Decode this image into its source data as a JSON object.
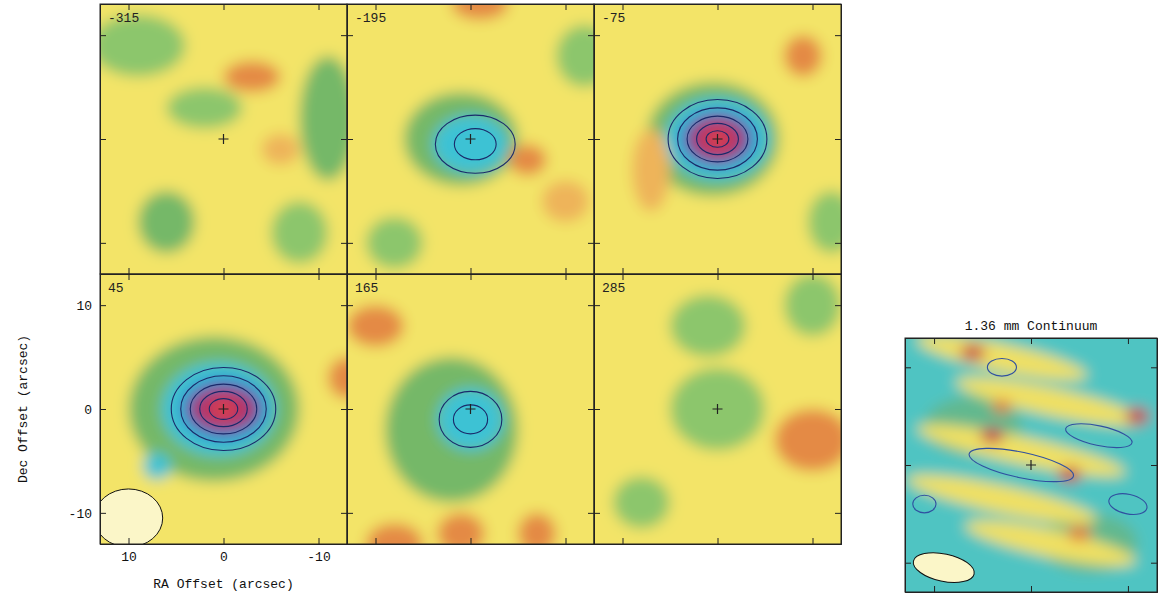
{
  "chart_data": [
    {
      "type": "contour_map",
      "velocity": -315,
      "xlim": [
        13,
        -13
      ],
      "ylim": [
        -13,
        13
      ],
      "xticks": [
        10,
        0,
        -10
      ],
      "yticks": [
        -10,
        0,
        10
      ],
      "tick_labels": false,
      "color": "#f3e468",
      "cross": [
        0,
        0
      ],
      "blobs": [
        {
          "x": 9,
          "y": 9,
          "rx": 5,
          "ry": 3,
          "color": "#8cc66c"
        },
        {
          "x": -11,
          "y": 2,
          "rx": 3,
          "ry": 6,
          "color": "#74b868"
        },
        {
          "x": 2,
          "y": 3,
          "rx": 4,
          "ry": 2,
          "color": "#8cc66c"
        },
        {
          "x": -3,
          "y": 6,
          "rx": 3,
          "ry": 1.5,
          "color": "#e48a44"
        },
        {
          "x": 6,
          "y": -8,
          "rx": 3,
          "ry": 3,
          "color": "#74b868"
        },
        {
          "x": -8,
          "y": -9,
          "rx": 3,
          "ry": 3,
          "color": "#8cc66c"
        },
        {
          "x": -6,
          "y": -1,
          "rx": 2,
          "ry": 1.5,
          "color": "#eeb45a"
        }
      ],
      "contours": []
    },
    {
      "type": "contour_map",
      "velocity": -195,
      "xlim": [
        13,
        -13
      ],
      "ylim": [
        -13,
        13
      ],
      "xticks": [
        10,
        0,
        -10
      ],
      "yticks": [
        -10,
        0,
        10
      ],
      "tick_labels": false,
      "color": "#f3e468",
      "cross": [
        0,
        0
      ],
      "blobs": [
        {
          "x": 1,
          "y": 0,
          "rx": 6,
          "ry": 4.5,
          "color": "#74b868"
        },
        {
          "x": 0,
          "y": -0.5,
          "rx": 4,
          "ry": 2.8,
          "color": "#3cc2d4"
        },
        {
          "x": -6,
          "y": -2,
          "rx": 2,
          "ry": 1.5,
          "color": "#e48a44"
        },
        {
          "x": -10,
          "y": -6,
          "rx": 2.5,
          "ry": 2,
          "color": "#eeb45a"
        },
        {
          "x": 8,
          "y": -10,
          "rx": 3,
          "ry": 2.5,
          "color": "#8cc66c"
        },
        {
          "x": -12,
          "y": 8,
          "rx": 3,
          "ry": 3,
          "color": "#8cc66c"
        },
        {
          "x": -1,
          "y": 13,
          "rx": 3,
          "ry": 1.5,
          "color": "#e48a44"
        }
      ],
      "contours": [
        {
          "x": -0.5,
          "y": -0.5,
          "rx": 4.2,
          "ry": 2.8,
          "color": "#1a2a6a"
        },
        {
          "x": -0.5,
          "y": -0.5,
          "rx": 2.2,
          "ry": 1.5,
          "color": "#1a2a6a"
        }
      ]
    },
    {
      "type": "contour_map",
      "velocity": -75,
      "xlim": [
        13,
        -13
      ],
      "ylim": [
        -13,
        13
      ],
      "xticks": [
        10,
        0,
        -10
      ],
      "yticks": [
        -10,
        0,
        10
      ],
      "tick_labels": false,
      "color": "#f3e468",
      "cross": [
        0,
        0
      ],
      "blobs": [
        {
          "x": 0.5,
          "y": 0,
          "rx": 7,
          "ry": 5.5,
          "color": "#74b868"
        },
        {
          "x": 0,
          "y": 0,
          "rx": 5.5,
          "ry": 4,
          "color": "#3cc2d4"
        },
        {
          "x": 0,
          "y": 0,
          "rx": 4,
          "ry": 2.8,
          "color": "#2a7cc8"
        },
        {
          "x": 0,
          "y": 0,
          "rx": 3,
          "ry": 2,
          "color": "#b0306a"
        },
        {
          "x": 0,
          "y": 0,
          "rx": 1.4,
          "ry": 1,
          "color": "#d8404e"
        },
        {
          "x": -9,
          "y": 8,
          "rx": 2,
          "ry": 2,
          "color": "#e48a44"
        },
        {
          "x": -12,
          "y": -8,
          "rx": 2.5,
          "ry": 3,
          "color": "#8cc66c"
        },
        {
          "x": 7,
          "y": -3,
          "rx": 2,
          "ry": 4,
          "color": "#eeb45a"
        }
      ],
      "contours": [
        {
          "x": 0,
          "y": 0,
          "rx": 5.2,
          "ry": 3.8,
          "color": "#1a2a6a"
        },
        {
          "x": 0,
          "y": 0,
          "rx": 4.2,
          "ry": 3,
          "color": "#1a2a6a"
        },
        {
          "x": 0,
          "y": 0,
          "rx": 3.2,
          "ry": 2.2,
          "color": "#1a2a6a"
        },
        {
          "x": 0,
          "y": 0,
          "rx": 2.2,
          "ry": 1.5,
          "color": "#1a2a6a"
        },
        {
          "x": 0,
          "y": 0,
          "rx": 1.2,
          "ry": 0.8,
          "color": "#1a2a6a"
        }
      ]
    },
    {
      "type": "contour_map",
      "velocity": 45,
      "xlim": [
        13,
        -13
      ],
      "ylim": [
        -13,
        13
      ],
      "xticks": [
        10,
        0,
        -10
      ],
      "yticks": [
        -10,
        0,
        10
      ],
      "color": "#f3e468",
      "cross": [
        0,
        0
      ],
      "xlabel": "RA Offset (arcsec)",
      "ylabel": "Dec Offset (arcsec)",
      "beam": {
        "x": 10,
        "y": -10.5,
        "rx": 3.6,
        "ry": 2.8
      },
      "blobs": [
        {
          "x": 1,
          "y": 0,
          "rx": 9,
          "ry": 7,
          "color": "#74b868"
        },
        {
          "x": 0.5,
          "y": 0,
          "rx": 6,
          "ry": 4.5,
          "color": "#3cc2d4"
        },
        {
          "x": 0,
          "y": 0,
          "rx": 4.5,
          "ry": 3,
          "color": "#2a7cc8"
        },
        {
          "x": 0,
          "y": 0,
          "rx": 3.5,
          "ry": 2,
          "color": "#b0306a"
        },
        {
          "x": 0,
          "y": 0,
          "rx": 1.5,
          "ry": 1,
          "color": "#d8404e"
        },
        {
          "x": 7,
          "y": -5.5,
          "rx": 1.5,
          "ry": 1.3,
          "color": "#3cc2d4"
        },
        {
          "x": -13,
          "y": 3,
          "rx": 2,
          "ry": 2,
          "color": "#e48a44"
        }
      ],
      "contours": [
        {
          "x": 0,
          "y": 0,
          "rx": 5.5,
          "ry": 4,
          "color": "#1a2a6a"
        },
        {
          "x": 0,
          "y": 0,
          "rx": 4.5,
          "ry": 3.2,
          "color": "#1a2a6a"
        },
        {
          "x": 0,
          "y": 0,
          "rx": 3.5,
          "ry": 2.4,
          "color": "#1a2a6a"
        },
        {
          "x": 0,
          "y": 0,
          "rx": 2.5,
          "ry": 1.7,
          "color": "#1a2a6a"
        },
        {
          "x": 0,
          "y": 0,
          "rx": 1.5,
          "ry": 1,
          "color": "#1a2a6a"
        }
      ]
    },
    {
      "type": "contour_map",
      "velocity": 165,
      "xlim": [
        13,
        -13
      ],
      "ylim": [
        -13,
        13
      ],
      "xticks": [
        10,
        0,
        -10
      ],
      "yticks": [
        -10,
        0,
        10
      ],
      "tick_labels": false,
      "color": "#f3e468",
      "cross": [
        0,
        0
      ],
      "blobs": [
        {
          "x": 2,
          "y": -2,
          "rx": 7,
          "ry": 7,
          "color": "#74b868"
        },
        {
          "x": 0,
          "y": -1,
          "rx": 3.5,
          "ry": 3,
          "color": "#3cc2d4"
        },
        {
          "x": 10,
          "y": 8,
          "rx": 3,
          "ry": 2,
          "color": "#e48a44"
        },
        {
          "x": 1,
          "y": -12,
          "rx": 2.5,
          "ry": 2,
          "color": "#e48a44"
        },
        {
          "x": -7,
          "y": -12,
          "rx": 2,
          "ry": 2,
          "color": "#e48a44"
        },
        {
          "x": 8,
          "y": -13,
          "rx": 3,
          "ry": 2,
          "color": "#e48a44"
        }
      ],
      "contours": [
        {
          "x": 0,
          "y": -1,
          "rx": 3.3,
          "ry": 2.7,
          "color": "#1a2a6a"
        },
        {
          "x": 0,
          "y": -1,
          "rx": 1.8,
          "ry": 1.4,
          "color": "#1a2a6a"
        }
      ]
    },
    {
      "type": "contour_map",
      "velocity": 285,
      "xlim": [
        13,
        -13
      ],
      "ylim": [
        -13,
        13
      ],
      "xticks": [
        10,
        0,
        -10
      ],
      "yticks": [
        -10,
        0,
        10
      ],
      "tick_labels": false,
      "color": "#f3e468",
      "cross": [
        0,
        0
      ],
      "blobs": [
        {
          "x": 0,
          "y": 0,
          "rx": 5,
          "ry": 4,
          "color": "#8cc66c"
        },
        {
          "x": 1,
          "y": 8,
          "rx": 4,
          "ry": 3,
          "color": "#8cc66c"
        },
        {
          "x": -10,
          "y": -3,
          "rx": 4,
          "ry": 3,
          "color": "#e48a44"
        },
        {
          "x": -10,
          "y": 10,
          "rx": 3,
          "ry": 3,
          "color": "#8cc66c"
        },
        {
          "x": 8,
          "y": -9,
          "rx": 3,
          "ry": 2.5,
          "color": "#8cc66c"
        }
      ],
      "contours": []
    },
    {
      "type": "contour_map",
      "title": "1.36 mm Continuum",
      "xlim": [
        13,
        -13
      ],
      "ylim": [
        -13,
        13
      ],
      "xticks": [
        10,
        0,
        -10
      ],
      "yticks": [
        -10,
        0,
        10
      ],
      "tick_labels": false,
      "color": "#4fc4c2",
      "cross": [
        0,
        0
      ],
      "beam": {
        "x": 9,
        "y": -10.5,
        "rx": 3.2,
        "ry": 1.4,
        "pa": 12
      },
      "blobs": [
        {
          "x": 6,
          "y": 4,
          "rx": 5,
          "ry": 3,
          "color": "#62b88e"
        },
        {
          "x": -6,
          "y": -8,
          "rx": 5,
          "ry": 3,
          "color": "#62b88e"
        },
        {
          "x": 3,
          "y": 11,
          "rx": 9,
          "ry": 1.4,
          "pa": 12,
          "color": "#f0e062"
        },
        {
          "x": -2,
          "y": 6.5,
          "rx": 10,
          "ry": 1.4,
          "pa": 12,
          "color": "#f0e062"
        },
        {
          "x": 1,
          "y": 1.5,
          "rx": 11,
          "ry": 1.4,
          "pa": 12,
          "color": "#f0e062"
        },
        {
          "x": 3,
          "y": -3.5,
          "rx": 10,
          "ry": 1.4,
          "pa": 12,
          "color": "#f0e062"
        },
        {
          "x": -2,
          "y": -8,
          "rx": 9,
          "ry": 1.4,
          "pa": 12,
          "color": "#f0e062"
        },
        {
          "x": 6,
          "y": 11.5,
          "rx": 1.3,
          "ry": 0.8,
          "color": "#c8404a"
        },
        {
          "x": 4,
          "y": 3,
          "rx": 1.2,
          "ry": 0.8,
          "color": "#c8404a"
        },
        {
          "x": -4,
          "y": -1,
          "rx": 1.2,
          "ry": 0.8,
          "color": "#c8404a"
        },
        {
          "x": -11,
          "y": 5,
          "rx": 1.2,
          "ry": 0.9,
          "color": "#c8404a"
        },
        {
          "x": -5,
          "y": -7,
          "rx": 1.2,
          "ry": 0.8,
          "color": "#e07a3a"
        },
        {
          "x": 3,
          "y": 6,
          "rx": 1,
          "ry": 0.7,
          "color": "#e07a3a"
        }
      ],
      "contours": [
        {
          "x": 1,
          "y": 0,
          "rx": 5.5,
          "ry": 1.3,
          "pa": 12,
          "color": "#3050a0"
        },
        {
          "x": -7,
          "y": 3,
          "rx": 3.5,
          "ry": 1,
          "pa": 12,
          "color": "#3050a0"
        },
        {
          "x": 11,
          "y": -4,
          "rx": 1.2,
          "ry": 0.9,
          "color": "#3050a0"
        },
        {
          "x": -10,
          "y": -4,
          "rx": 2,
          "ry": 1,
          "pa": 12,
          "color": "#3050a0"
        },
        {
          "x": 3,
          "y": 10,
          "rx": 1.5,
          "ry": 0.9,
          "color": "#3050a0"
        }
      ]
    }
  ]
}
